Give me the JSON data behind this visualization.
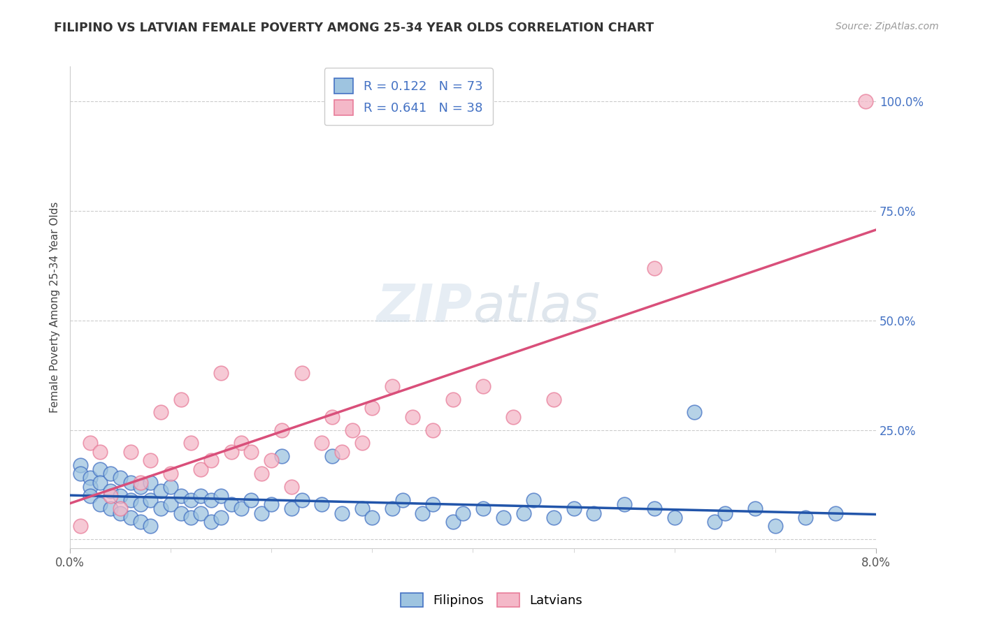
{
  "title": "FILIPINO VS LATVIAN FEMALE POVERTY AMONG 25-34 YEAR OLDS CORRELATION CHART",
  "source": "Source: ZipAtlas.com",
  "ylabel": "Female Poverty Among 25-34 Year Olds",
  "xlim": [
    0.0,
    0.08
  ],
  "ylim": [
    -0.02,
    1.08
  ],
  "ytick_positions": [
    0.0,
    0.25,
    0.5,
    0.75,
    1.0
  ],
  "ytick_labels": [
    "",
    "25.0%",
    "50.0%",
    "75.0%",
    "100.0%"
  ],
  "xtick_major": [
    0.0,
    0.08
  ],
  "xtick_minor": [
    0.01,
    0.02,
    0.03,
    0.04,
    0.05,
    0.06,
    0.07
  ],
  "filipino_color": "#9ec4e0",
  "latvian_color": "#f4b8c8",
  "filipino_edge_color": "#4472c4",
  "latvian_edge_color": "#e87d9a",
  "filipino_line_color": "#2255aa",
  "latvian_line_color": "#d94f7a",
  "filipino_r": 0.122,
  "filipino_n": 73,
  "latvian_r": 0.641,
  "latvian_n": 38,
  "background_color": "#ffffff",
  "grid_color": "#cccccc",
  "title_color": "#333333",
  "source_color": "#999999",
  "ytick_color": "#4472c4",
  "watermark_color": "#ccd9e8",
  "filipino_x": [
    0.001,
    0.001,
    0.002,
    0.002,
    0.002,
    0.003,
    0.003,
    0.003,
    0.004,
    0.004,
    0.004,
    0.005,
    0.005,
    0.005,
    0.006,
    0.006,
    0.006,
    0.007,
    0.007,
    0.007,
    0.008,
    0.008,
    0.008,
    0.009,
    0.009,
    0.01,
    0.01,
    0.011,
    0.011,
    0.012,
    0.012,
    0.013,
    0.013,
    0.014,
    0.014,
    0.015,
    0.015,
    0.016,
    0.017,
    0.018,
    0.019,
    0.02,
    0.021,
    0.022,
    0.023,
    0.025,
    0.026,
    0.027,
    0.029,
    0.03,
    0.032,
    0.033,
    0.035,
    0.036,
    0.038,
    0.039,
    0.041,
    0.043,
    0.045,
    0.046,
    0.048,
    0.05,
    0.052,
    0.055,
    0.058,
    0.06,
    0.062,
    0.064,
    0.065,
    0.068,
    0.07,
    0.073,
    0.076
  ],
  "filipino_y": [
    0.17,
    0.15,
    0.14,
    0.12,
    0.1,
    0.16,
    0.13,
    0.08,
    0.15,
    0.11,
    0.07,
    0.14,
    0.1,
    0.06,
    0.13,
    0.09,
    0.05,
    0.12,
    0.08,
    0.04,
    0.13,
    0.09,
    0.03,
    0.11,
    0.07,
    0.12,
    0.08,
    0.1,
    0.06,
    0.09,
    0.05,
    0.1,
    0.06,
    0.09,
    0.04,
    0.1,
    0.05,
    0.08,
    0.07,
    0.09,
    0.06,
    0.08,
    0.19,
    0.07,
    0.09,
    0.08,
    0.19,
    0.06,
    0.07,
    0.05,
    0.07,
    0.09,
    0.06,
    0.08,
    0.04,
    0.06,
    0.07,
    0.05,
    0.06,
    0.09,
    0.05,
    0.07,
    0.06,
    0.08,
    0.07,
    0.05,
    0.29,
    0.04,
    0.06,
    0.07,
    0.03,
    0.05,
    0.06
  ],
  "latvian_x": [
    0.001,
    0.002,
    0.003,
    0.004,
    0.005,
    0.006,
    0.007,
    0.008,
    0.009,
    0.01,
    0.011,
    0.012,
    0.013,
    0.014,
    0.015,
    0.016,
    0.017,
    0.018,
    0.019,
    0.02,
    0.021,
    0.022,
    0.023,
    0.025,
    0.026,
    0.027,
    0.028,
    0.029,
    0.03,
    0.032,
    0.034,
    0.036,
    0.038,
    0.041,
    0.044,
    0.048,
    0.058,
    0.079
  ],
  "latvian_y": [
    0.03,
    0.22,
    0.2,
    0.1,
    0.07,
    0.2,
    0.13,
    0.18,
    0.29,
    0.15,
    0.32,
    0.22,
    0.16,
    0.18,
    0.38,
    0.2,
    0.22,
    0.2,
    0.15,
    0.18,
    0.25,
    0.12,
    0.38,
    0.22,
    0.28,
    0.2,
    0.25,
    0.22,
    0.3,
    0.35,
    0.28,
    0.25,
    0.32,
    0.35,
    0.28,
    0.32,
    0.62,
    1.0
  ]
}
